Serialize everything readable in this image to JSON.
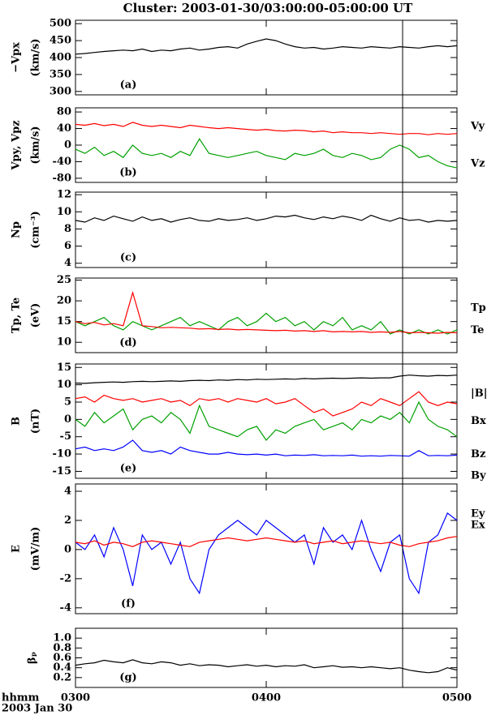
{
  "title": "Cluster: 2003-01-30/03:00:00-05:00:00 UT",
  "x_axis_labels": [
    "hhmm",
    "2003 Jan 30"
  ],
  "vline": 4.715,
  "chart_data": [
    {
      "type": "line",
      "panel_label": "(a)",
      "ylabel": [
        "−Vpx",
        "(km/s)"
      ],
      "xlim": [
        3,
        5
      ],
      "xticks": [
        3,
        4,
        5
      ],
      "ylim": [
        290,
        510
      ],
      "yticks": [
        300,
        350,
        400,
        450,
        500
      ],
      "x": [
        3,
        3.05,
        3.1,
        3.15,
        3.2,
        3.25,
        3.3,
        3.35,
        3.4,
        3.45,
        3.5,
        3.55,
        3.6,
        3.65,
        3.7,
        3.75,
        3.8,
        3.85,
        3.9,
        3.95,
        4,
        4.05,
        4.1,
        4.15,
        4.2,
        4.25,
        4.3,
        4.35,
        4.4,
        4.45,
        4.5,
        4.55,
        4.6,
        4.65,
        4.7,
        4.75,
        4.8,
        4.85,
        4.9,
        4.95,
        5
      ],
      "series": [
        {
          "color": "#000000",
          "values": [
            410,
            412,
            415,
            418,
            420,
            422,
            420,
            425,
            418,
            422,
            420,
            425,
            428,
            422,
            425,
            430,
            432,
            428,
            440,
            448,
            455,
            450,
            440,
            432,
            428,
            430,
            425,
            428,
            432,
            430,
            428,
            432,
            430,
            428,
            432,
            430,
            428,
            432,
            435,
            432,
            435
          ]
        }
      ]
    },
    {
      "type": "line",
      "panel_label": "(b)",
      "ylabel": [
        "Vpy, Vpz",
        "(km/s)"
      ],
      "xlim": [
        3,
        5
      ],
      "xticks": [
        3,
        4,
        5
      ],
      "ylim": [
        -90,
        90
      ],
      "yticks": [
        -80,
        -40,
        0,
        40,
        80
      ],
      "x": [
        3,
        3.05,
        3.1,
        3.15,
        3.2,
        3.25,
        3.3,
        3.35,
        3.4,
        3.45,
        3.5,
        3.55,
        3.6,
        3.65,
        3.7,
        3.75,
        3.8,
        3.85,
        3.9,
        3.95,
        4,
        4.05,
        4.1,
        4.15,
        4.2,
        4.25,
        4.3,
        4.35,
        4.4,
        4.45,
        4.5,
        4.55,
        4.6,
        4.65,
        4.7,
        4.75,
        4.8,
        4.85,
        4.9,
        4.95,
        5
      ],
      "series": [
        {
          "name": "Vy",
          "color": "#ff0000",
          "values": [
            50,
            48,
            52,
            47,
            50,
            45,
            55,
            48,
            45,
            48,
            45,
            42,
            48,
            45,
            42,
            40,
            42,
            40,
            38,
            36,
            38,
            35,
            34,
            36,
            35,
            32,
            34,
            30,
            32,
            30,
            30,
            28,
            30,
            28,
            26,
            28,
            28,
            25,
            28,
            26,
            28
          ]
        },
        {
          "name": "Vz",
          "color": "#00a000",
          "values": [
            -10,
            -20,
            -5,
            -25,
            -15,
            -30,
            0,
            -20,
            -25,
            -20,
            -30,
            -15,
            -25,
            15,
            -20,
            -25,
            -30,
            -25,
            -20,
            -15,
            -25,
            -30,
            -35,
            -20,
            -25,
            -20,
            -10,
            -25,
            -30,
            -20,
            -25,
            -35,
            -30,
            -10,
            0,
            -10,
            -30,
            -25,
            -40,
            -50,
            -55
          ]
        }
      ]
    },
    {
      "type": "line",
      "panel_label": "(c)",
      "ylabel": [
        "Np",
        "(cm⁻³)"
      ],
      "xlim": [
        3,
        5
      ],
      "xticks": [
        3,
        4,
        5
      ],
      "ylim": [
        3.5,
        12.3
      ],
      "yticks": [
        4,
        6,
        8,
        10,
        12
      ],
      "x": [
        3,
        3.05,
        3.1,
        3.15,
        3.2,
        3.25,
        3.3,
        3.35,
        3.4,
        3.45,
        3.5,
        3.55,
        3.6,
        3.65,
        3.7,
        3.75,
        3.8,
        3.85,
        3.9,
        3.95,
        4,
        4.05,
        4.1,
        4.15,
        4.2,
        4.25,
        4.3,
        4.35,
        4.4,
        4.45,
        4.5,
        4.55,
        4.6,
        4.65,
        4.7,
        4.75,
        4.8,
        4.85,
        4.9,
        4.95,
        5
      ],
      "series": [
        {
          "color": "#000000",
          "values": [
            9.0,
            8.8,
            9.3,
            9.0,
            9.5,
            9.2,
            8.9,
            9.4,
            9.0,
            9.2,
            8.8,
            9.1,
            9.3,
            9.0,
            8.9,
            9.2,
            9.0,
            9.1,
            9.3,
            9.0,
            9.2,
            9.5,
            9.4,
            9.6,
            9.3,
            9.1,
            9.4,
            9.2,
            9.5,
            9.3,
            9.0,
            9.6,
            9.2,
            8.9,
            9.3,
            9.0,
            9.1,
            8.8,
            9.0,
            8.9,
            9.0
          ]
        }
      ]
    },
    {
      "type": "line",
      "panel_label": "(d)",
      "ylabel": [
        "Tp, Te",
        "(eV)"
      ],
      "xlim": [
        3,
        5
      ],
      "xticks": [
        3,
        4,
        5
      ],
      "ylim": [
        7.5,
        25.5
      ],
      "yticks": [
        10,
        15,
        20,
        25
      ],
      "x": [
        3,
        3.05,
        3.1,
        3.15,
        3.2,
        3.25,
        3.3,
        3.35,
        3.4,
        3.45,
        3.5,
        3.55,
        3.6,
        3.65,
        3.7,
        3.75,
        3.8,
        3.85,
        3.9,
        3.95,
        4,
        4.05,
        4.1,
        4.15,
        4.2,
        4.25,
        4.3,
        4.35,
        4.4,
        4.45,
        4.5,
        4.55,
        4.6,
        4.65,
        4.7,
        4.75,
        4.8,
        4.85,
        4.9,
        4.95,
        5
      ],
      "series": [
        {
          "name": "Tp",
          "color": "#00a000",
          "values": [
            15,
            14,
            15,
            16,
            14,
            13,
            15,
            14,
            13,
            14,
            15,
            16,
            14,
            15,
            14,
            13,
            15,
            16,
            14,
            15,
            17,
            15,
            16,
            14,
            15,
            13,
            15,
            14,
            16,
            13,
            14,
            13,
            15,
            12,
            13,
            12,
            13,
            12,
            13,
            12,
            13
          ]
        },
        {
          "name": "Te",
          "color": "#ff0000",
          "values": [
            15,
            14.5,
            14.8,
            14.2,
            14.5,
            14,
            22,
            14,
            13.8,
            13.5,
            13.6,
            13.5,
            13.4,
            13.2,
            13.3,
            13.1,
            13.2,
            13,
            13.1,
            13,
            12.9,
            12.8,
            12.9,
            12.7,
            12.8,
            12.6,
            12.8,
            12.5,
            12.6,
            12.5,
            12.6,
            12.4,
            12.5,
            12.4,
            12.6,
            12.3,
            12.4,
            12.3,
            12.2,
            12.4,
            12.3
          ]
        }
      ]
    },
    {
      "type": "line",
      "panel_label": "(e)",
      "ylabel": [
        "B",
        "(nT)"
      ],
      "xlim": [
        3,
        5
      ],
      "xticks": [
        3,
        4,
        5
      ],
      "ylim": [
        -17,
        16
      ],
      "yticks": [
        -15,
        -10,
        -5,
        0,
        5,
        10,
        15
      ],
      "x": [
        3,
        3.05,
        3.1,
        3.15,
        3.2,
        3.25,
        3.3,
        3.35,
        3.4,
        3.45,
        3.5,
        3.55,
        3.6,
        3.65,
        3.7,
        3.75,
        3.8,
        3.85,
        3.9,
        3.95,
        4,
        4.05,
        4.1,
        4.15,
        4.2,
        4.25,
        4.3,
        4.35,
        4.4,
        4.45,
        4.5,
        4.55,
        4.6,
        4.65,
        4.7,
        4.75,
        4.8,
        4.85,
        4.9,
        4.95,
        5
      ],
      "series": [
        {
          "name": "|B|",
          "color": "#000000",
          "values": [
            10.5,
            10.4,
            10.6,
            10.7,
            10.8,
            10.7,
            10.9,
            11,
            10.9,
            11,
            11.1,
            11,
            11.2,
            11.3,
            11.2,
            11.4,
            11.3,
            11.5,
            11.4,
            11.6,
            11.5,
            11.6,
            11.7,
            11.6,
            11.8,
            11.7,
            11.8,
            11.9,
            11.8,
            11.9,
            12,
            11.9,
            12,
            12,
            12.5,
            12.8,
            12.6,
            12.5,
            12.7,
            12.6,
            12.8
          ]
        },
        {
          "name": "Bx",
          "color": "#ff0000",
          "values": [
            6,
            6.5,
            5,
            7,
            6,
            5.5,
            6,
            5,
            5.5,
            6,
            5,
            5.5,
            4,
            6,
            5.5,
            6,
            5,
            6,
            5.5,
            5,
            6,
            4.5,
            5,
            6,
            4,
            2,
            3,
            1,
            2,
            3,
            5,
            4,
            6,
            5,
            4,
            6,
            8,
            5,
            4,
            5,
            4.5
          ]
        },
        {
          "name": "Bz",
          "color": "#00a000",
          "values": [
            0,
            -2,
            2,
            -1,
            1,
            3,
            -3,
            0,
            1,
            -1,
            2,
            0,
            -4,
            4,
            -2,
            -3,
            -4,
            -5,
            -3,
            -2,
            -6,
            -3,
            -4,
            -2,
            -1,
            0,
            -3,
            -2,
            -1,
            -3,
            0,
            -1,
            1,
            0,
            2,
            -1,
            5,
            0,
            -2,
            -3,
            -5
          ]
        },
        {
          "name": "By",
          "color": "#0000ff",
          "values": [
            -8.5,
            -8,
            -9,
            -8.5,
            -9,
            -8,
            -6,
            -9,
            -9.5,
            -9,
            -10,
            -8,
            -9,
            -9.5,
            -10,
            -10,
            -9.5,
            -10,
            -10.2,
            -10,
            -10.3,
            -10,
            -10.5,
            -10.3,
            -10.4,
            -10.2,
            -10.5,
            -10.4,
            -10.5,
            -10.3,
            -10.6,
            -10.5,
            -10.6,
            -10.4,
            -10.5,
            -10.6,
            -9,
            -10.5,
            -10.4,
            -10.5,
            -10.3
          ]
        }
      ]
    },
    {
      "type": "line",
      "panel_label": "(f)",
      "ylabel": [
        "E",
        "(mV/m)"
      ],
      "xlim": [
        3,
        5
      ],
      "xticks": [
        3,
        4,
        5
      ],
      "ylim": [
        -4.4,
        4.5
      ],
      "yticks": [
        -4,
        -2,
        0,
        2,
        4
      ],
      "x": [
        3,
        3.05,
        3.1,
        3.15,
        3.2,
        3.25,
        3.3,
        3.35,
        3.4,
        3.45,
        3.5,
        3.55,
        3.6,
        3.65,
        3.7,
        3.75,
        3.8,
        3.85,
        3.9,
        3.95,
        4,
        4.05,
        4.1,
        4.15,
        4.2,
        4.25,
        4.3,
        4.35,
        4.4,
        4.45,
        4.5,
        4.55,
        4.6,
        4.65,
        4.7,
        4.75,
        4.8,
        4.85,
        4.9,
        4.95,
        5
      ],
      "series": [
        {
          "name": "Ey",
          "color": "#0000ff",
          "values": [
            0.5,
            0,
            1,
            -0.5,
            1.5,
            0,
            -2.5,
            1,
            0,
            0.5,
            -1,
            0.5,
            -2,
            -3,
            0,
            1,
            1.5,
            2,
            1.5,
            1,
            2,
            1.5,
            1,
            0.5,
            1,
            -1,
            1.5,
            0.5,
            1,
            0,
            2,
            0,
            -1.5,
            0.5,
            1,
            -2,
            -3,
            0.5,
            1,
            2.5,
            2
          ]
        },
        {
          "name": "Ex",
          "color": "#ff0000",
          "values": [
            0.5,
            0.4,
            0.6,
            0.3,
            0.5,
            0.4,
            0.2,
            0.5,
            0.6,
            0.5,
            0.4,
            0.3,
            0.2,
            0.5,
            0.6,
            0.7,
            0.8,
            0.7,
            0.6,
            0.7,
            0.8,
            0.7,
            0.6,
            0.5,
            0.6,
            0.4,
            0.5,
            0.6,
            0.4,
            0.5,
            0.6,
            0.5,
            0.4,
            0.5,
            0.3,
            0.2,
            0.4,
            0.5,
            0.6,
            0.8,
            0.9
          ]
        }
      ]
    },
    {
      "type": "line",
      "panel_label": "(g)",
      "ylabel": [
        "βₚ"
      ],
      "xlim": [
        3,
        5
      ],
      "xticks": [
        {
          "value": 3,
          "label": "0300"
        },
        {
          "value": 4,
          "label": "0400"
        },
        {
          "value": 5,
          "label": "0500"
        }
      ],
      "ylim": [
        0,
        1.2
      ],
      "yticks": [
        0.2,
        0.4,
        0.6,
        0.8,
        {
          "value": 1,
          "label": "1.0"
        }
      ],
      "x": [
        3,
        3.05,
        3.1,
        3.15,
        3.2,
        3.25,
        3.3,
        3.35,
        3.4,
        3.45,
        3.5,
        3.55,
        3.6,
        3.65,
        3.7,
        3.75,
        3.8,
        3.85,
        3.9,
        3.95,
        4,
        4.05,
        4.1,
        4.15,
        4.2,
        4.25,
        4.3,
        4.35,
        4.4,
        4.45,
        4.5,
        4.55,
        4.6,
        4.65,
        4.7,
        4.75,
        4.8,
        4.85,
        4.9,
        4.95,
        5
      ],
      "series": [
        {
          "color": "#000000",
          "values": [
            0.45,
            0.48,
            0.5,
            0.55,
            0.52,
            0.5,
            0.56,
            0.5,
            0.48,
            0.52,
            0.5,
            0.45,
            0.48,
            0.44,
            0.46,
            0.45,
            0.42,
            0.44,
            0.46,
            0.43,
            0.45,
            0.42,
            0.44,
            0.43,
            0.46,
            0.4,
            0.42,
            0.44,
            0.41,
            0.42,
            0.4,
            0.42,
            0.4,
            0.38,
            0.4,
            0.35,
            0.32,
            0.3,
            0.32,
            0.4,
            0.35
          ]
        }
      ]
    }
  ]
}
